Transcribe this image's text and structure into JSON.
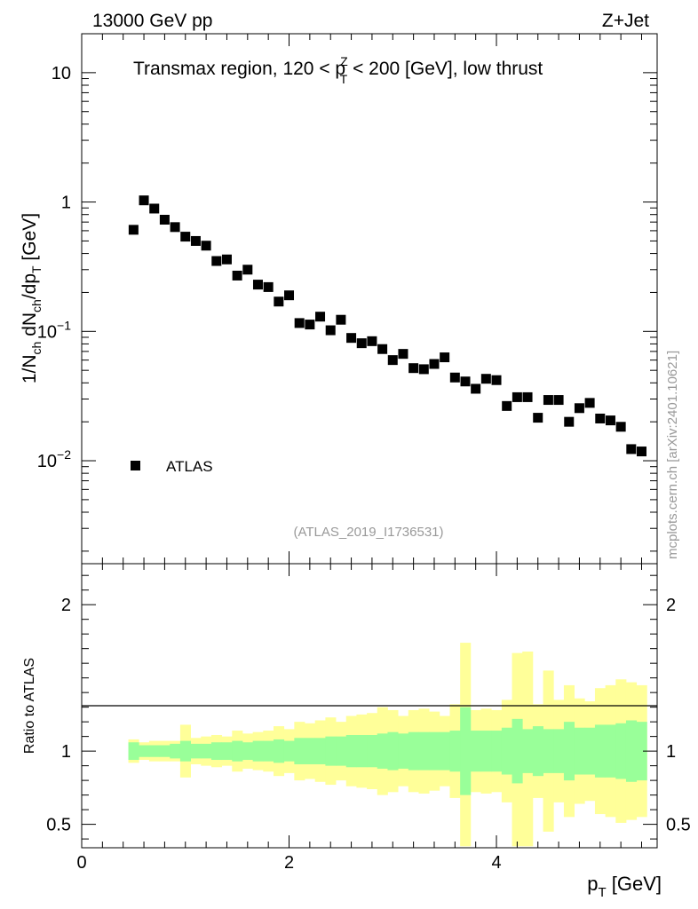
{
  "header": {
    "left": "13000 GeV pp",
    "right": "Z+Jet",
    "title_pre": "Transmax region, 120 < p",
    "title_sup": "Z",
    "title_sub": "T",
    "title_post": " < 200 [GeV], low thrust",
    "analysis_id": "(ATLAS_2019_I1736531)",
    "side_label": "mcplots.cern.ch [arXiv:2401.10621]"
  },
  "colors": {
    "marker": "#000000",
    "band_stat": "#99ff99",
    "band_total": "#ffff99",
    "frame": "#000000"
  },
  "chart_data": [
    {
      "type": "scatter",
      "panel": "main",
      "yscale": "log",
      "xlabel": "p_T [GeV]",
      "ylabel": "1/N_ch dN_ch/dp_T [GeV]",
      "xlim": [
        0,
        5.55
      ],
      "ylim": [
        0.0016,
        20
      ],
      "y_ticks": [
        {
          "value": 10,
          "label": "10"
        },
        {
          "value": 1,
          "label": "1"
        },
        {
          "value": 0.1,
          "label": "10",
          "exp": "−1"
        },
        {
          "value": 0.01,
          "label": "10",
          "exp": "−2"
        }
      ],
      "legend": {
        "label": "ATLAS",
        "position": "bottom-left"
      },
      "series": [
        {
          "name": "ATLAS",
          "x": [
            0.5,
            0.6,
            0.7,
            0.8,
            0.9,
            1.0,
            1.1,
            1.2,
            1.3,
            1.4,
            1.5,
            1.6,
            1.7,
            1.8,
            1.9,
            2.0,
            2.1,
            2.2,
            2.3,
            2.4,
            2.5,
            2.6,
            2.7,
            2.8,
            2.9,
            3.0,
            3.1,
            3.2,
            3.3,
            3.4,
            3.5,
            3.6,
            3.7,
            3.8,
            3.9,
            4.0,
            4.1,
            4.2,
            4.3,
            4.4,
            4.5,
            4.6,
            4.7,
            4.8,
            4.9,
            5.0,
            5.1,
            5.2,
            5.3,
            5.4
          ],
          "y": [
            0.61,
            1.03,
            0.89,
            0.73,
            0.64,
            0.54,
            0.5,
            0.46,
            0.35,
            0.36,
            0.27,
            0.3,
            0.23,
            0.22,
            0.17,
            0.19,
            0.116,
            0.113,
            0.13,
            0.102,
            0.123,
            0.089,
            0.081,
            0.084,
            0.073,
            0.06,
            0.067,
            0.052,
            0.051,
            0.056,
            0.063,
            0.044,
            0.041,
            0.036,
            0.043,
            0.042,
            0.0265,
            0.031,
            0.031,
            0.0215,
            0.0295,
            0.0295,
            0.02,
            0.0255,
            0.028,
            0.0212,
            0.0205,
            0.0183,
            0.0123,
            0.0118
          ]
        }
      ]
    },
    {
      "type": "area",
      "panel": "ratio",
      "xlabel": "p_T [GeV]",
      "ylabel": "Ratio to ATLAS",
      "xlim": [
        0,
        5.55
      ],
      "ylim": [
        0.34,
        2.28
      ],
      "x_ticks": [
        {
          "value": 0,
          "label": "0"
        },
        {
          "value": 2,
          "label": "2"
        },
        {
          "value": 4,
          "label": "4"
        }
      ],
      "y_ticks": [
        {
          "value": 0.5,
          "label": "0.5"
        },
        {
          "value": 1,
          "label": "1"
        },
        {
          "value": 2,
          "label": "2"
        }
      ],
      "bin_edges": [
        0.45,
        0.55,
        0.65,
        0.75,
        0.85,
        0.95,
        1.05,
        1.15,
        1.25,
        1.35,
        1.45,
        1.55,
        1.65,
        1.75,
        1.85,
        1.95,
        2.05,
        2.15,
        2.25,
        2.35,
        2.45,
        2.55,
        2.65,
        2.75,
        2.85,
        2.95,
        3.05,
        3.15,
        3.25,
        3.35,
        3.45,
        3.55,
        3.65,
        3.75,
        3.85,
        3.95,
        4.05,
        4.15,
        4.25,
        4.35,
        4.45,
        4.55,
        4.65,
        4.75,
        4.85,
        4.95,
        5.05,
        5.15,
        5.25,
        5.35,
        5.45
      ],
      "series": [
        {
          "name": "stat",
          "low": [
            0.94,
            0.96,
            0.96,
            0.96,
            0.95,
            0.93,
            0.95,
            0.95,
            0.94,
            0.94,
            0.93,
            0.94,
            0.93,
            0.93,
            0.92,
            0.93,
            0.91,
            0.91,
            0.91,
            0.9,
            0.9,
            0.89,
            0.89,
            0.89,
            0.88,
            0.87,
            0.88,
            0.87,
            0.87,
            0.87,
            0.87,
            0.86,
            0.7,
            0.86,
            0.86,
            0.86,
            0.84,
            0.78,
            0.85,
            0.83,
            0.85,
            0.85,
            0.8,
            0.84,
            0.84,
            0.82,
            0.82,
            0.81,
            0.79,
            0.8
          ],
          "high": [
            1.06,
            1.04,
            1.04,
            1.04,
            1.05,
            1.07,
            1.05,
            1.05,
            1.06,
            1.06,
            1.07,
            1.06,
            1.07,
            1.07,
            1.08,
            1.07,
            1.09,
            1.09,
            1.09,
            1.1,
            1.1,
            1.11,
            1.11,
            1.11,
            1.12,
            1.13,
            1.12,
            1.13,
            1.13,
            1.13,
            1.13,
            1.14,
            1.3,
            1.14,
            1.14,
            1.14,
            1.16,
            1.22,
            1.15,
            1.17,
            1.15,
            1.15,
            1.2,
            1.16,
            1.16,
            1.18,
            1.18,
            1.19,
            1.21,
            1.2
          ]
        },
        {
          "name": "total",
          "low": [
            0.92,
            0.94,
            0.93,
            0.93,
            0.93,
            0.82,
            0.91,
            0.9,
            0.89,
            0.9,
            0.86,
            0.88,
            0.87,
            0.86,
            0.83,
            0.85,
            0.8,
            0.81,
            0.79,
            0.77,
            0.8,
            0.76,
            0.75,
            0.74,
            0.7,
            0.72,
            0.76,
            0.72,
            0.71,
            0.73,
            0.76,
            0.68,
            0.35,
            0.72,
            0.71,
            0.72,
            0.65,
            0.35,
            0.35,
            0.68,
            0.45,
            0.65,
            0.55,
            0.64,
            0.66,
            0.57,
            0.55,
            0.51,
            0.53,
            0.55
          ],
          "high": [
            1.08,
            1.06,
            1.07,
            1.07,
            1.07,
            1.18,
            1.09,
            1.1,
            1.11,
            1.1,
            1.14,
            1.12,
            1.13,
            1.14,
            1.17,
            1.15,
            1.2,
            1.19,
            1.21,
            1.23,
            1.2,
            1.24,
            1.25,
            1.26,
            1.3,
            1.28,
            1.24,
            1.28,
            1.29,
            1.27,
            1.24,
            1.32,
            1.74,
            1.28,
            1.29,
            1.28,
            1.35,
            1.67,
            1.68,
            1.32,
            1.55,
            1.35,
            1.45,
            1.36,
            1.34,
            1.43,
            1.45,
            1.49,
            1.47,
            1.45
          ]
        }
      ]
    }
  ]
}
